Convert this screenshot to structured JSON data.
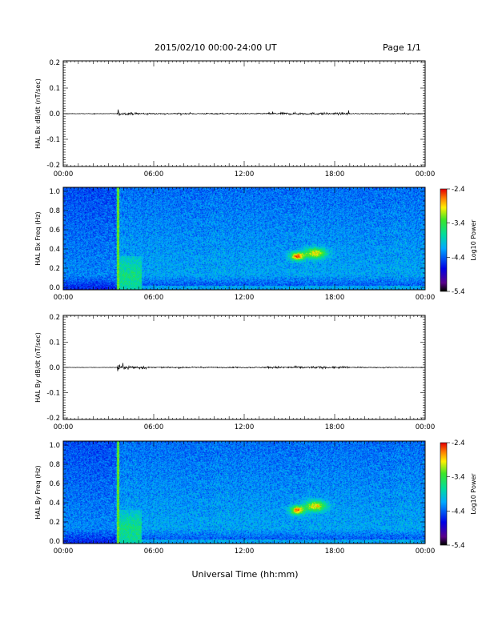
{
  "header": {
    "date_range": "2015/02/10  00:00-24:00 UT",
    "page": "Page 1/1"
  },
  "x_axis_title": "Universal Time (hh:mm)",
  "colors": {
    "trace": "#000000",
    "background": "#ffffff"
  },
  "chart_data": [
    {
      "type": "line",
      "name": "bx-dbdt",
      "ylabel": "HAL Bx dB/dt (nT/sec)",
      "xlim": [
        "00:00",
        "24:00"
      ],
      "ylim": [
        -0.2,
        0.2
      ],
      "yticks": [
        "0.2",
        "0.1",
        "0.0",
        "-0.1",
        "-0.2"
      ],
      "xticks": [
        "00:00",
        "06:00",
        "12:00",
        "18:00",
        "00:00"
      ],
      "baseline": 0.0,
      "activity": [
        {
          "start_h": 2.0,
          "end_h": 2.1,
          "amp": 0.003
        },
        {
          "start_h": 3.55,
          "end_h": 3.75,
          "amp": 0.008
        },
        {
          "start_h": 3.75,
          "end_h": 5.5,
          "amp": 0.004
        },
        {
          "start_h": 5.5,
          "end_h": 13.5,
          "amp": 0.002
        },
        {
          "start_h": 13.5,
          "end_h": 19.0,
          "amp": 0.004
        },
        {
          "start_h": 19.0,
          "end_h": 24.0,
          "amp": 0.0015
        }
      ]
    },
    {
      "type": "heatmap",
      "name": "bx-freq",
      "ylabel": "HAL Bx Freq (Hz)",
      "xlim": [
        "00:00",
        "24:00"
      ],
      "ylim": [
        0.0,
        1.0
      ],
      "yticks": [
        "1.0",
        "0.8",
        "0.6",
        "0.4",
        "0.2",
        "0.0"
      ],
      "xticks": [
        "00:00",
        "06:00",
        "12:00",
        "18:00",
        "00:00"
      ],
      "colorbar": {
        "label": "Log10 Power",
        "min": -5.4,
        "max": -2.4,
        "ticks": [
          "-2.4",
          "-3.4",
          "-4.4",
          "-5.4"
        ]
      },
      "features": [
        {
          "t_h": 3.6,
          "f_lo": 0.0,
          "f_hi": 1.0,
          "level": -3.2
        },
        {
          "t_h": 4.5,
          "f_lo": 0.0,
          "f_hi": 0.3,
          "level": -3.6
        },
        {
          "t_h": 15.5,
          "f_center": 0.33,
          "level": -2.8
        },
        {
          "t_h": 16.7,
          "f_center": 0.36,
          "level": -3.0
        }
      ]
    },
    {
      "type": "line",
      "name": "by-dbdt",
      "ylabel": "HAL By dB/dt (nT/sec)",
      "xlim": [
        "00:00",
        "24:00"
      ],
      "ylim": [
        -0.2,
        0.2
      ],
      "yticks": [
        "0.2",
        "0.1",
        "0.0",
        "-0.1",
        "-0.2"
      ],
      "xticks": [
        "00:00",
        "06:00",
        "12:00",
        "18:00",
        "00:00"
      ],
      "baseline": 0.0,
      "activity": [
        {
          "start_h": 3.55,
          "end_h": 3.75,
          "amp": 0.02
        },
        {
          "start_h": 3.75,
          "end_h": 5.5,
          "amp": 0.006
        },
        {
          "start_h": 5.5,
          "end_h": 13.5,
          "amp": 0.002
        },
        {
          "start_h": 13.5,
          "end_h": 19.0,
          "amp": 0.004
        },
        {
          "start_h": 19.0,
          "end_h": 24.0,
          "amp": 0.0015
        }
      ]
    },
    {
      "type": "heatmap",
      "name": "by-freq",
      "ylabel": "HAL By Freq (Hz)",
      "xlim": [
        "00:00",
        "24:00"
      ],
      "ylim": [
        0.0,
        1.0
      ],
      "yticks": [
        "1.0",
        "0.8",
        "0.6",
        "0.4",
        "0.2",
        "0.0"
      ],
      "xticks": [
        "00:00",
        "06:00",
        "12:00",
        "18:00",
        "00:00"
      ],
      "colorbar": {
        "label": "Log10 Power",
        "min": -5.4,
        "max": -2.4,
        "ticks": [
          "-2.4",
          "-3.4",
          "-4.4",
          "-5.4"
        ]
      },
      "features": [
        {
          "t_h": 3.6,
          "f_lo": 0.0,
          "f_hi": 1.0,
          "level": -3.2
        },
        {
          "t_h": 4.5,
          "f_lo": 0.0,
          "f_hi": 0.3,
          "level": -3.6
        },
        {
          "t_h": 15.5,
          "f_center": 0.33,
          "level": -2.8
        },
        {
          "t_h": 16.7,
          "f_center": 0.37,
          "level": -3.0
        }
      ]
    }
  ]
}
